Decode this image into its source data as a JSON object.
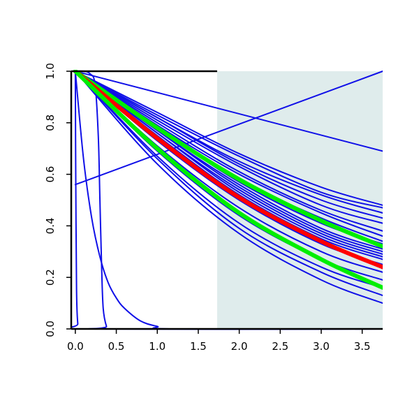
{
  "chart_data": {
    "type": "line",
    "title": "",
    "xlabel": "",
    "ylabel": "",
    "xlim": [
      -0.05,
      3.75
    ],
    "ylim": [
      0,
      1
    ],
    "grid": false,
    "legend": "none",
    "x_ticks": [
      "0.0",
      "0.5",
      "1.0",
      "1.5",
      "2.0",
      "2.5",
      "3.0",
      "3.5"
    ],
    "y_ticks": [
      "0.0",
      "0.2",
      "0.4",
      "0.6",
      "0.8",
      "1.0"
    ],
    "shaded_region": {
      "x": [
        1.73,
        3.75
      ],
      "color": "#dfecec"
    },
    "colors": {
      "bundle": "#1010e8",
      "highlight_red": "#ff0000",
      "highlight_green": "#00ee00",
      "axes": "#000000"
    },
    "series": [
      {
        "role": "bundle",
        "x": [
          0,
          3.75
        ],
        "y": [
          1.0,
          0.69
        ]
      },
      {
        "role": "bundle",
        "x": [
          0,
          3.75
        ],
        "y": [
          0.56,
          1.0
        ]
      },
      {
        "role": "bundle",
        "x": [
          0,
          0.005,
          0.015,
          0.03,
          0.05,
          3.75
        ],
        "y": [
          1.0,
          0.6,
          0.15,
          0.02,
          0.0,
          0.0
        ]
      },
      {
        "role": "bundle",
        "x": [
          0,
          0.1,
          0.2,
          0.3,
          0.4,
          0.5,
          0.6,
          0.8,
          1.0,
          1.2,
          3.75
        ],
        "y": [
          1.0,
          0.66,
          0.43,
          0.28,
          0.18,
          0.12,
          0.08,
          0.03,
          0.01,
          0.0,
          0.0
        ]
      },
      {
        "role": "bundle",
        "x": [
          0,
          0.1,
          0.18,
          0.24,
          0.28,
          0.3,
          0.32,
          0.34,
          0.38,
          0.42,
          3.75
        ],
        "y": [
          1.0,
          1.0,
          0.99,
          0.95,
          0.75,
          0.5,
          0.25,
          0.08,
          0.01,
          0.0,
          0.0
        ]
      },
      {
        "role": "bundle",
        "x": [
          0,
          1,
          2,
          3,
          3.75
        ],
        "y": [
          1.0,
          0.84,
          0.68,
          0.55,
          0.48
        ]
      },
      {
        "role": "bundle",
        "x": [
          0,
          1,
          2,
          3,
          3.75
        ],
        "y": [
          1.0,
          0.83,
          0.67,
          0.53,
          0.47
        ]
      },
      {
        "role": "bundle",
        "x": [
          0,
          1,
          2,
          3,
          3.75
        ],
        "y": [
          1.0,
          0.82,
          0.65,
          0.52,
          0.45
        ]
      },
      {
        "role": "bundle",
        "x": [
          0,
          1,
          2,
          3,
          3.75
        ],
        "y": [
          1.0,
          0.82,
          0.64,
          0.5,
          0.43
        ]
      },
      {
        "role": "bundle",
        "x": [
          0,
          1,
          2,
          3,
          3.75
        ],
        "y": [
          1.0,
          0.81,
          0.63,
          0.48,
          0.41
        ]
      },
      {
        "role": "bundle",
        "x": [
          0,
          1,
          2,
          3,
          3.75
        ],
        "y": [
          1.0,
          0.8,
          0.61,
          0.46,
          0.38
        ]
      },
      {
        "role": "bundle",
        "x": [
          0,
          1,
          2,
          3,
          3.75
        ],
        "y": [
          1.0,
          0.79,
          0.6,
          0.45,
          0.36
        ]
      },
      {
        "role": "bundle",
        "x": [
          0,
          1,
          2,
          3,
          3.75
        ],
        "y": [
          1.0,
          0.79,
          0.58,
          0.43,
          0.34
        ]
      },
      {
        "role": "bundle",
        "x": [
          0,
          1,
          2,
          3,
          3.75
        ],
        "y": [
          1.0,
          0.78,
          0.57,
          0.41,
          0.33
        ]
      },
      {
        "role": "bundle",
        "x": [
          0,
          1,
          2,
          3,
          3.75
        ],
        "y": [
          1.0,
          0.77,
          0.56,
          0.39,
          0.31
        ]
      },
      {
        "role": "bundle",
        "x": [
          0,
          1,
          2,
          3,
          3.75
        ],
        "y": [
          1.0,
          0.77,
          0.55,
          0.38,
          0.3
        ]
      },
      {
        "role": "bundle",
        "x": [
          0,
          1,
          2,
          3,
          3.75
        ],
        "y": [
          1.0,
          0.76,
          0.54,
          0.37,
          0.29
        ]
      },
      {
        "role": "bundle",
        "x": [
          0,
          1,
          2,
          3,
          3.75
        ],
        "y": [
          1.0,
          0.76,
          0.53,
          0.36,
          0.28
        ]
      },
      {
        "role": "bundle",
        "x": [
          0,
          1,
          2,
          3,
          3.75
        ],
        "y": [
          1.0,
          0.75,
          0.52,
          0.35,
          0.27
        ]
      },
      {
        "role": "bundle",
        "x": [
          0,
          1,
          2,
          3,
          3.75
        ],
        "y": [
          1.0,
          0.73,
          0.5,
          0.33,
          0.25
        ]
      },
      {
        "role": "bundle",
        "x": [
          0,
          1,
          2,
          3,
          3.75
        ],
        "y": [
          1.0,
          0.71,
          0.47,
          0.3,
          0.22
        ]
      },
      {
        "role": "bundle",
        "x": [
          0,
          1,
          2,
          3,
          3.75
        ],
        "y": [
          1.0,
          0.69,
          0.44,
          0.27,
          0.19
        ]
      },
      {
        "role": "bundle",
        "x": [
          0,
          1,
          2,
          3,
          3.75
        ],
        "y": [
          1.0,
          0.67,
          0.41,
          0.24,
          0.16
        ]
      },
      {
        "role": "bundle",
        "x": [
          0,
          1,
          2,
          3,
          3.75
        ],
        "y": [
          1.0,
          0.66,
          0.39,
          0.22,
          0.13
        ]
      },
      {
        "role": "bundle",
        "x": [
          0,
          1,
          2,
          3,
          3.75
        ],
        "y": [
          1.0,
          0.64,
          0.37,
          0.19,
          0.1
        ]
      },
      {
        "role": "highlight_green",
        "x": [
          0,
          1,
          2,
          3,
          3.75
        ],
        "y": [
          1.0,
          0.78,
          0.58,
          0.42,
          0.32
        ]
      },
      {
        "role": "highlight_red",
        "x": [
          0,
          1,
          2,
          3,
          3.75
        ],
        "y": [
          1.0,
          0.74,
          0.51,
          0.34,
          0.24
        ]
      },
      {
        "role": "highlight_green",
        "x": [
          0,
          1,
          2,
          3,
          3.75
        ],
        "y": [
          1.0,
          0.7,
          0.45,
          0.27,
          0.16
        ]
      }
    ]
  }
}
